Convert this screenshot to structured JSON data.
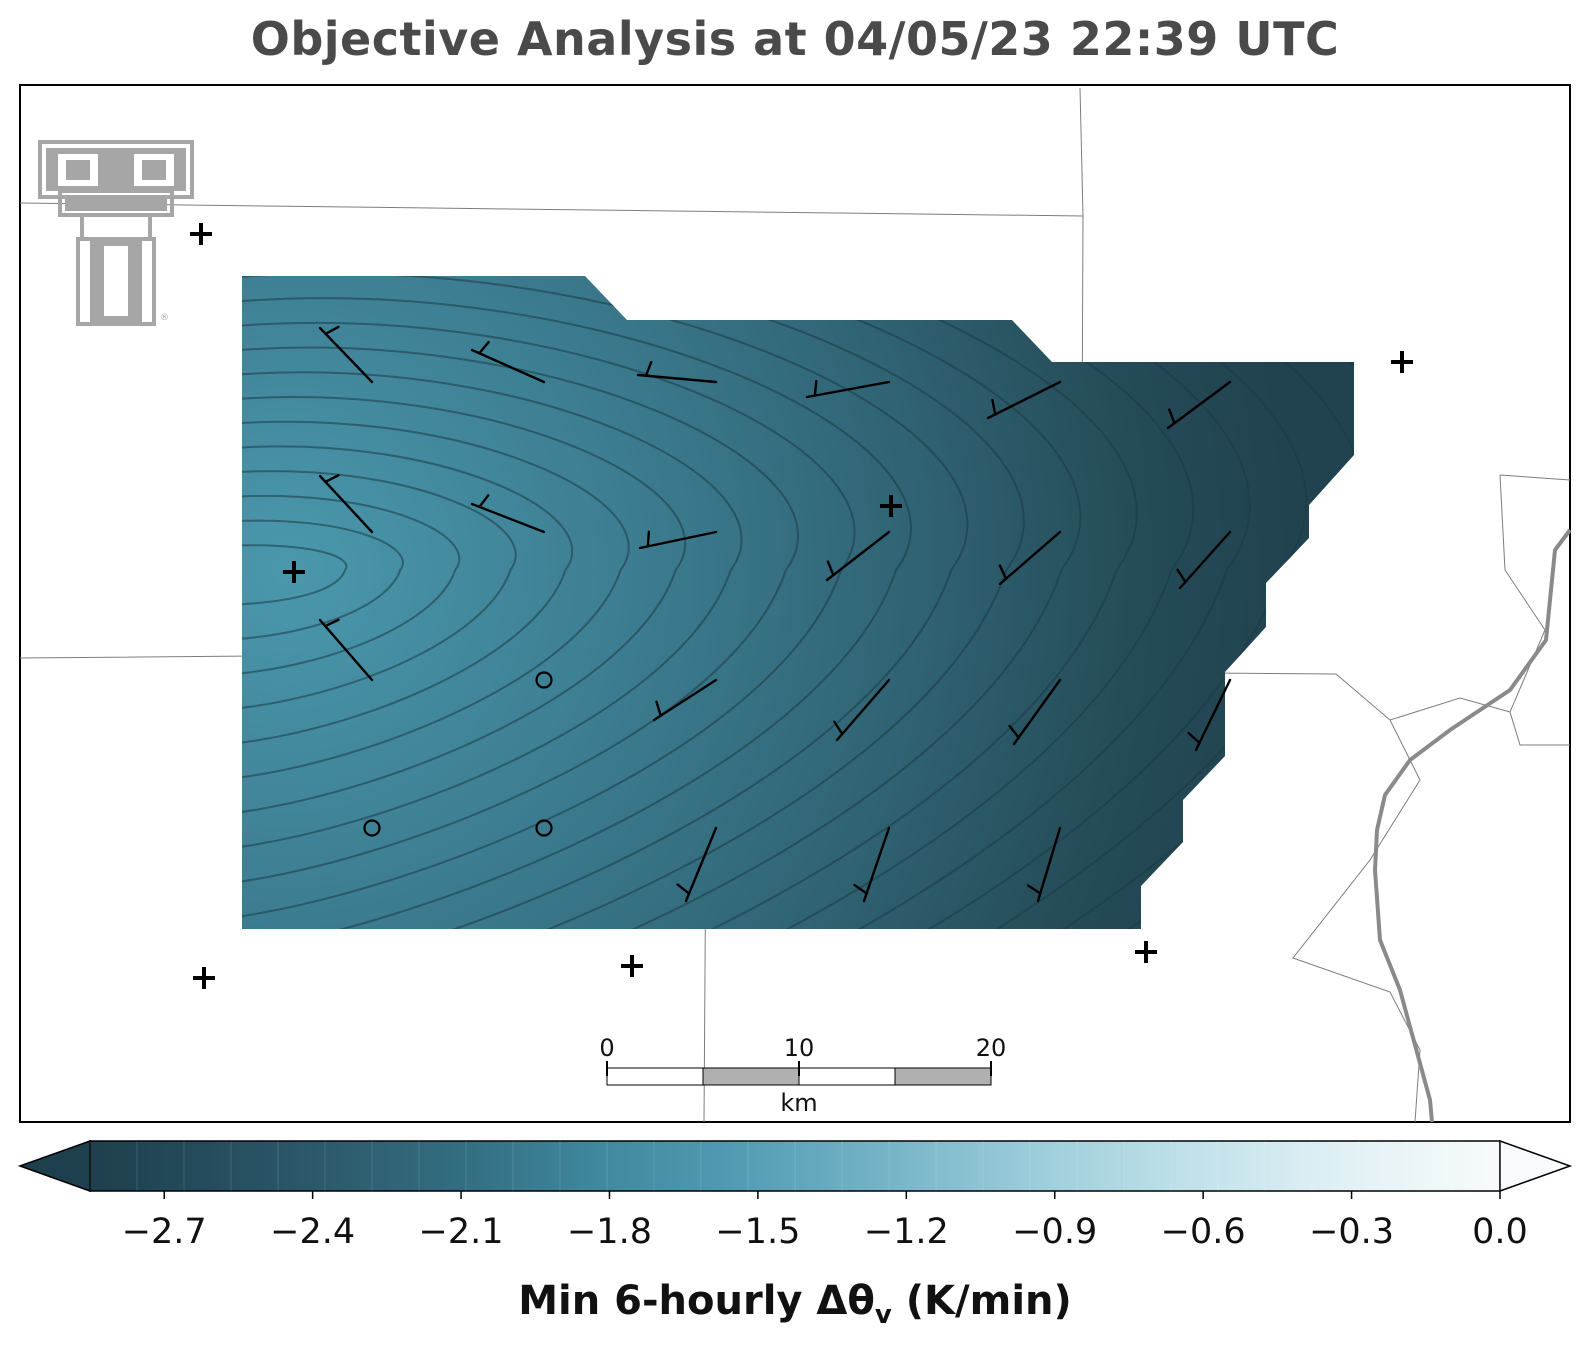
{
  "title": "Objective Analysis at 04/05/23 22:39 UTC",
  "colorbar": {
    "label_main": "Min 6-hourly Δθ",
    "label_sub": "v",
    "label_unit": " (K/min)",
    "ticks": [
      "−2.7",
      "−2.4",
      "−2.1",
      "−1.8",
      "−1.5",
      "−1.2",
      "−0.9",
      "−0.6",
      "−0.3",
      "0.0"
    ],
    "tick_values": [
      -2.7,
      -2.4,
      -2.1,
      -1.8,
      -1.5,
      -1.2,
      -0.9,
      -0.6,
      -0.3,
      0.0
    ],
    "range": [
      -2.85,
      0.0
    ],
    "extend": "both",
    "colors": [
      "#1e3f4e",
      "#2a5566",
      "#336b7e",
      "#3e8298",
      "#5aa1b8",
      "#7fb9cb",
      "#a2d1df",
      "#c9e6ee",
      "#e6f3f7",
      "#f7fbfc"
    ]
  },
  "scale_bar": {
    "labels": [
      "0",
      "10",
      "20"
    ],
    "unit": "km"
  },
  "logo": {
    "name": "texas-tech-double-t",
    "text": "T"
  },
  "stations_plus": 7,
  "stations_circle": 3,
  "colors": {
    "field_dark": "#22434f",
    "field_mid": "#36707f",
    "field_light": "#4a98ad",
    "contour": "#1b3b46",
    "barb": "#000000",
    "border_gray": "#808080",
    "logo_gray": "#a6a6a6"
  }
}
